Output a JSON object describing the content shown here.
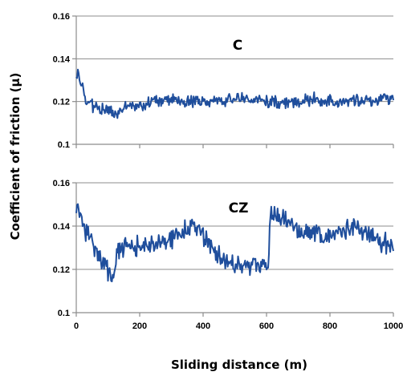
{
  "chart_data": {
    "type": "line",
    "xlabel": "Sliding distance (m)",
    "ylabel": "Coefficient of friction (μ)",
    "x_ticks": [
      "0",
      "200",
      "400",
      "600",
      "800",
      "1000"
    ],
    "xlim": [
      0,
      1000
    ],
    "line_color": "#1f4e9c",
    "panels": [
      {
        "label": "C",
        "ylim": [
          0.1,
          0.16
        ],
        "y_ticks": [
          "0.16",
          "0.14",
          "0.12",
          "0.1"
        ],
        "grid": true,
        "series": [
          {
            "x": [
              0,
              10,
              20,
              30,
              40,
              60,
              80,
              100,
              120,
              130,
              150,
              200,
              250,
              300,
              350,
              400,
              450,
              500,
              550,
              600,
              650,
              700,
              750,
              800,
              850,
              900,
              950,
              1000
            ],
            "values": [
              0.134,
              0.131,
              0.126,
              0.121,
              0.119,
              0.117,
              0.116,
              0.116,
              0.113,
              0.115,
              0.118,
              0.118,
              0.12,
              0.121,
              0.12,
              0.12,
              0.12,
              0.122,
              0.12,
              0.12,
              0.119,
              0.12,
              0.121,
              0.12,
              0.12,
              0.121,
              0.121,
              0.121
            ]
          }
        ]
      },
      {
        "label": "CZ",
        "ylim": [
          0.1,
          0.16
        ],
        "y_ticks": [
          "0.16",
          "0.14",
          "0.12",
          "0.1"
        ],
        "grid": true,
        "series": [
          {
            "x": [
              0,
              10,
              20,
              40,
              60,
              80,
              100,
              120,
              130,
              150,
              200,
              250,
              300,
              350,
              370,
              400,
              450,
              500,
              550,
              600,
              605,
              615,
              630,
              700,
              750,
              800,
              850,
              880,
              900,
              950,
              1000
            ],
            "values": [
              0.15,
              0.146,
              0.141,
              0.134,
              0.129,
              0.124,
              0.12,
              0.116,
              0.129,
              0.13,
              0.131,
              0.131,
              0.134,
              0.138,
              0.141,
              0.136,
              0.126,
              0.122,
              0.122,
              0.122,
              0.121,
              0.148,
              0.145,
              0.138,
              0.137,
              0.136,
              0.138,
              0.142,
              0.139,
              0.134,
              0.13
            ]
          }
        ]
      }
    ]
  }
}
